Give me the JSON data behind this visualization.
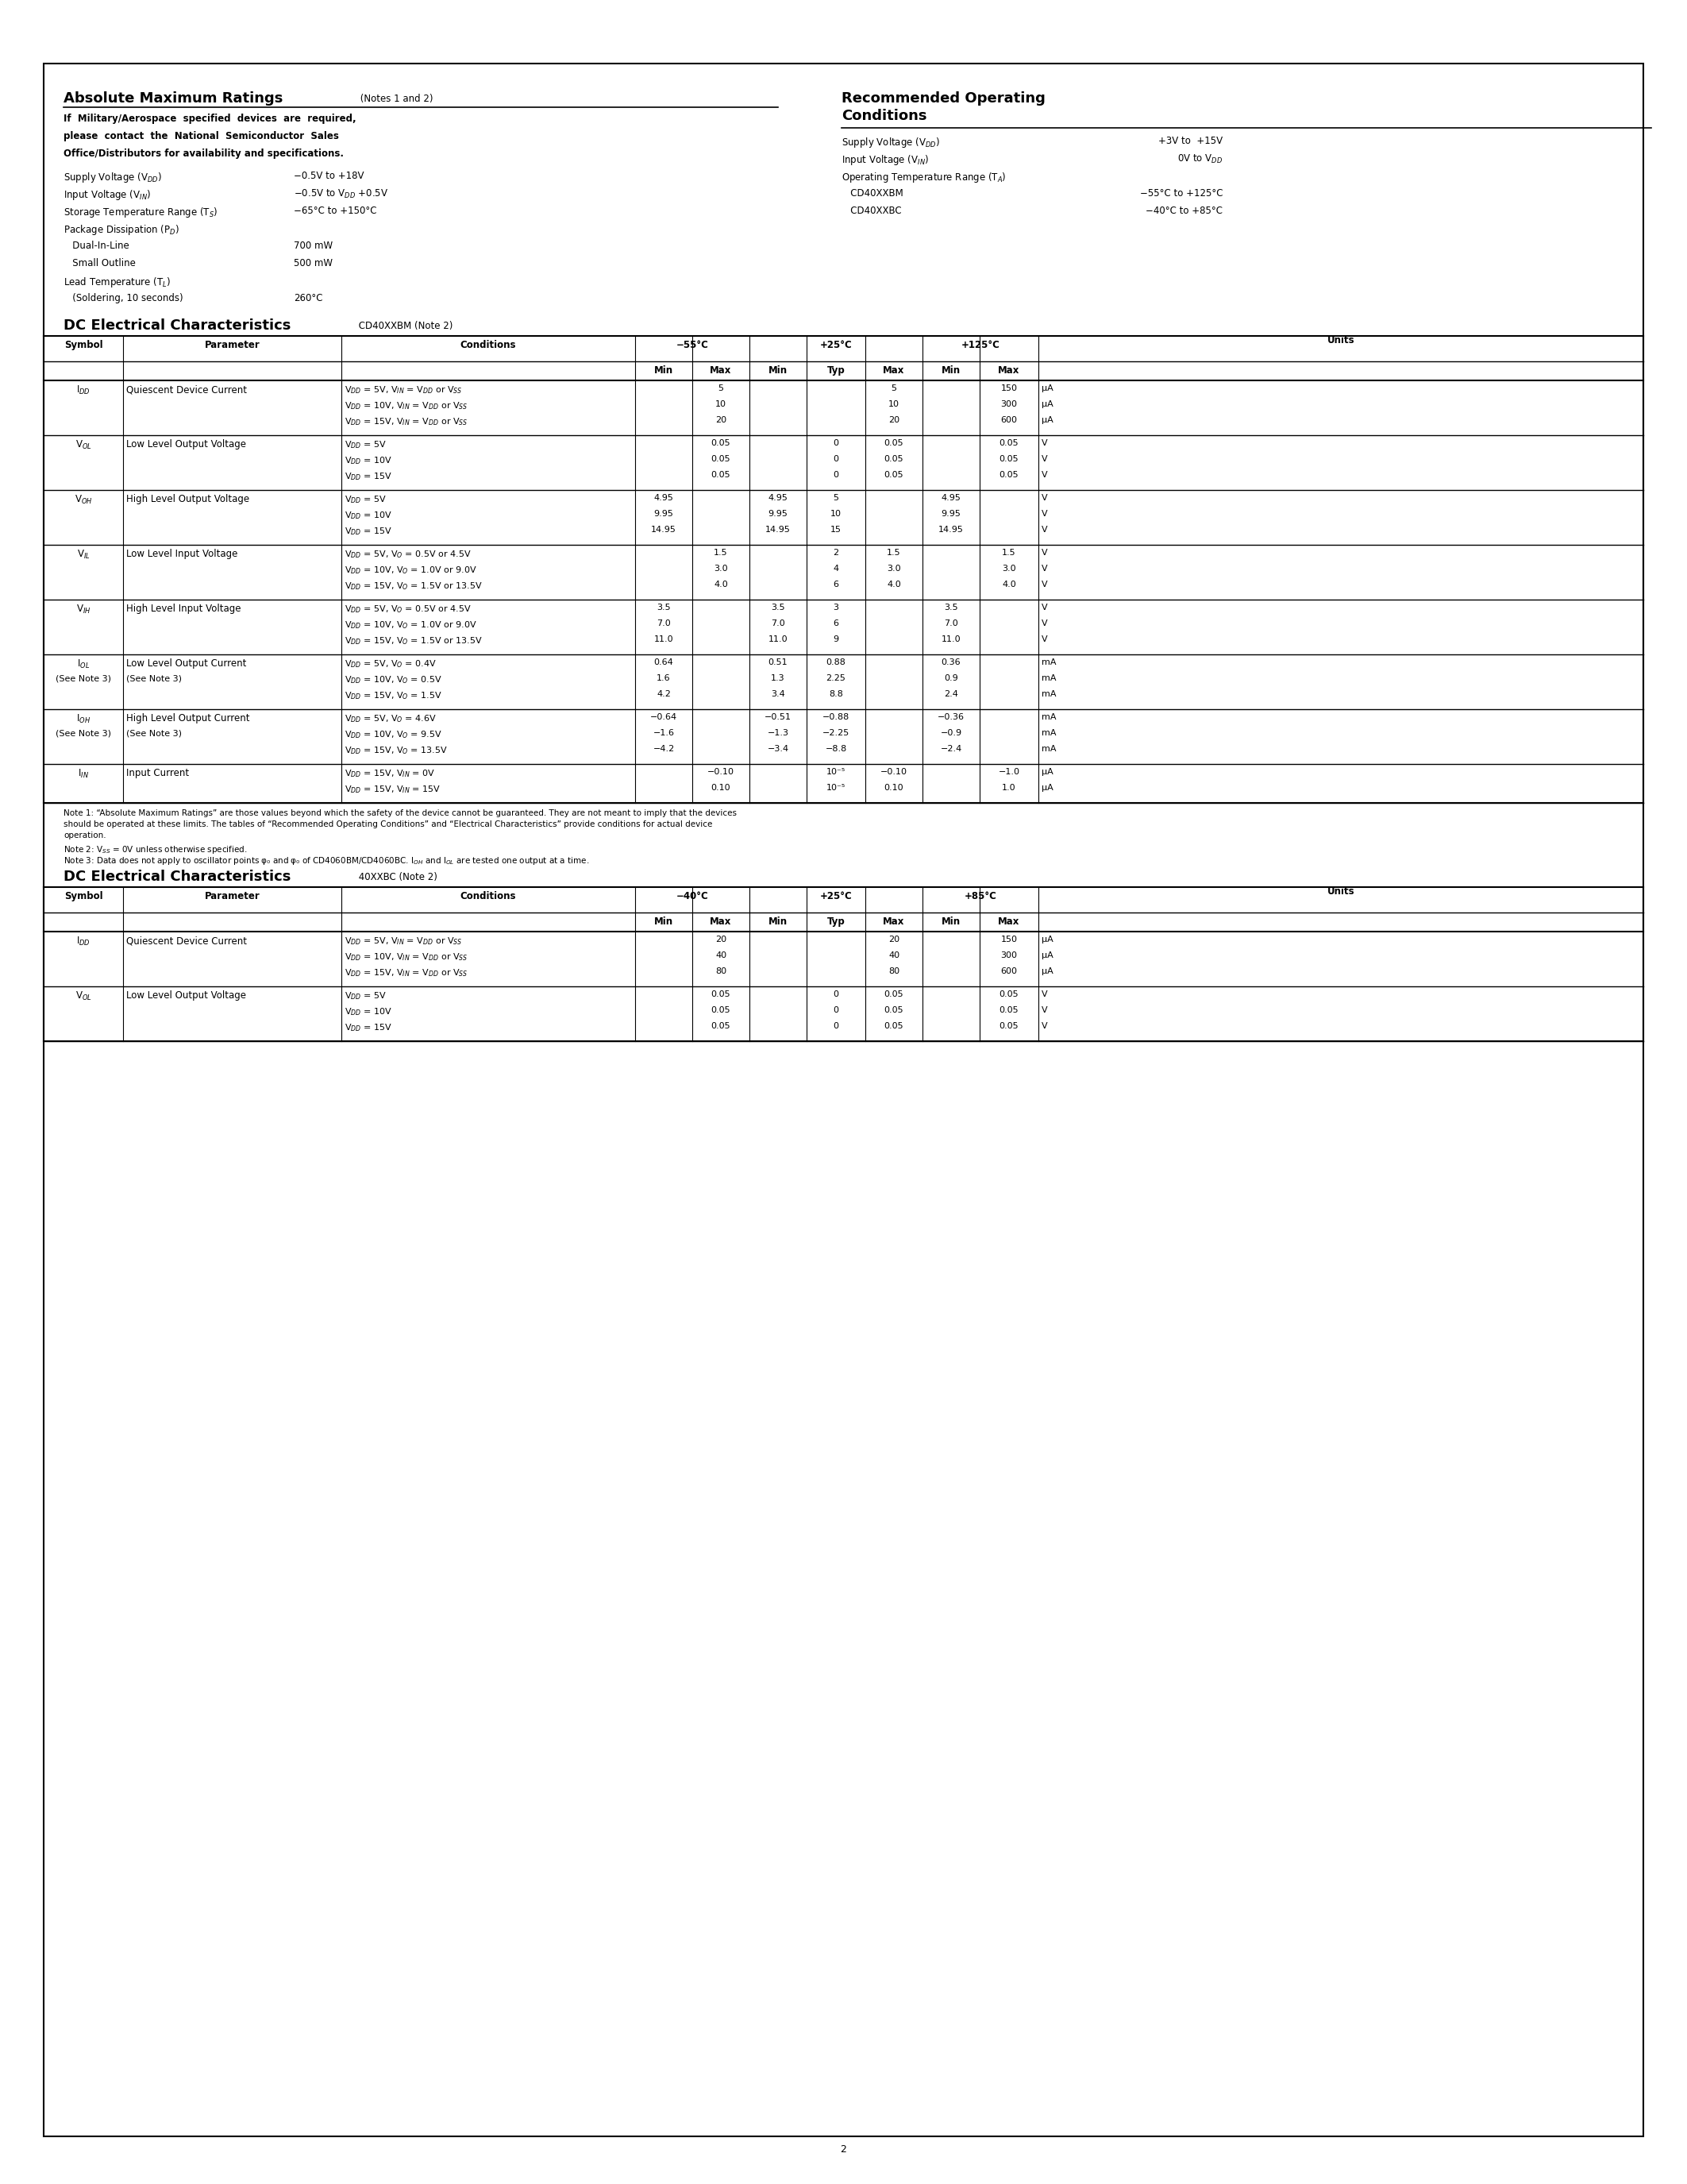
{
  "page_bg": "#ffffff",
  "border_lw": 1.5,
  "page_number": "2",
  "abs_max_title": "Absolute Maximum Ratings",
  "abs_max_notes": " (Notes 1 and 2)",
  "abs_max_military": "If  Military/Aerospace  specified  devices  are  required,\nplease  contact  the  National  Semiconductor  Sales\nOffice/Distributors for availability and specifications.",
  "rec_op_line1": "Recommended Operating",
  "rec_op_line2": "Conditions",
  "dc_title1": "DC Electrical Characteristics",
  "dc_subtitle1": " CD40XXBM (Note 2)",
  "dc_title2": "DC Electrical Characteristics",
  "dc_subtitle2": " 40XXBC (Note 2)",
  "temp_hdrs_1": [
    "−55°C",
    "+25°C",
    "+125°C"
  ],
  "temp_hdrs_2": [
    "−40°C",
    "+25°C",
    "+85°C"
  ],
  "sub_hdrs": [
    "Min",
    "Max",
    "Min",
    "Typ",
    "Max",
    "Min",
    "Max"
  ],
  "col_hdrs": [
    "Symbol",
    "Parameter",
    "Conditions",
    "Units"
  ],
  "note1": "Note 1: “Absolute Maximum Ratings” are those values beyond which the safety of the device cannot be guaranteed. They are not meant to imply that the devices",
  "note1b": "should be operated at these limits. The tables of “Recommended Operating Conditions” and “Electrical Characteristics” provide conditions for actual device",
  "note1c": "operation.",
  "note2": "Note 2: V$_{SS}$ = 0V unless otherwise specified.",
  "note3": "Note 3: Data does not apply to oscillator points φ$_0$ and $\\overline{\\varphi_0}$ of CD4060BM/CD4060BC. I$_{OH}$ and I$_{OL}$ are tested one output at a time.",
  "table1_rows": [
    {
      "symbol": "I$_{DD}$",
      "param": "Quiescent Device Current",
      "conditions": [
        "V$_{DD}$ = 5V, V$_{IN}$ = V$_{DD}$ or V$_{SS}$",
        "V$_{DD}$ = 10V, V$_{IN}$ = V$_{DD}$ or V$_{SS}$",
        "V$_{DD}$ = 15V, V$_{IN}$ = V$_{DD}$ or V$_{SS}$"
      ],
      "m55_min": [
        "",
        "",
        ""
      ],
      "m55_max": [
        "5",
        "10",
        "20"
      ],
      "p25_min": [
        "",
        "",
        ""
      ],
      "p25_typ": [
        "",
        "",
        ""
      ],
      "p25_max": [
        "5",
        "10",
        "20"
      ],
      "p125_min": [
        "",
        "",
        ""
      ],
      "p125_max": [
        "150",
        "300",
        "600"
      ],
      "units": [
        "μA",
        "μA",
        "μA"
      ]
    },
    {
      "symbol": "V$_{OL}$",
      "param": "Low Level Output Voltage",
      "conditions": [
        "V$_{DD}$ = 5V",
        "V$_{DD}$ = 10V",
        "V$_{DD}$ = 15V"
      ],
      "m55_min": [
        "",
        "",
        ""
      ],
      "m55_max": [
        "0.05",
        "0.05",
        "0.05"
      ],
      "p25_min": [
        "",
        "",
        ""
      ],
      "p25_typ": [
        "0",
        "0",
        "0"
      ],
      "p25_max": [
        "0.05",
        "0.05",
        "0.05"
      ],
      "p125_min": [
        "",
        "",
        ""
      ],
      "p125_max": [
        "0.05",
        "0.05",
        "0.05"
      ],
      "units": [
        "V",
        "V",
        "V"
      ]
    },
    {
      "symbol": "V$_{OH}$",
      "param": "High Level Output Voltage",
      "conditions": [
        "V$_{DD}$ = 5V",
        "V$_{DD}$ = 10V",
        "V$_{DD}$ = 15V"
      ],
      "m55_min": [
        "4.95",
        "9.95",
        "14.95"
      ],
      "m55_max": [
        "",
        "",
        ""
      ],
      "p25_min": [
        "4.95",
        "9.95",
        "14.95"
      ],
      "p25_typ": [
        "5",
        "10",
        "15"
      ],
      "p25_max": [
        "",
        "",
        ""
      ],
      "p125_min": [
        "4.95",
        "9.95",
        "14.95"
      ],
      "p125_max": [
        "",
        "",
        ""
      ],
      "units": [
        "V",
        "V",
        "V"
      ]
    },
    {
      "symbol": "V$_{IL}$",
      "param": "Low Level Input Voltage",
      "conditions": [
        "V$_{DD}$ = 5V, V$_O$ = 0.5V or 4.5V",
        "V$_{DD}$ = 10V, V$_O$ = 1.0V or 9.0V",
        "V$_{DD}$ = 15V, V$_O$ = 1.5V or 13.5V"
      ],
      "m55_min": [
        "",
        "",
        ""
      ],
      "m55_max": [
        "1.5",
        "3.0",
        "4.0"
      ],
      "p25_min": [
        "",
        "",
        ""
      ],
      "p25_typ": [
        "2",
        "4",
        "6"
      ],
      "p25_max": [
        "1.5",
        "3.0",
        "4.0"
      ],
      "p125_min": [
        "",
        "",
        ""
      ],
      "p125_max": [
        "1.5",
        "3.0",
        "4.0"
      ],
      "units": [
        "V",
        "V",
        "V"
      ]
    },
    {
      "symbol": "V$_{IH}$",
      "param": "High Level Input Voltage",
      "conditions": [
        "V$_{DD}$ = 5V, V$_O$ = 0.5V or 4.5V",
        "V$_{DD}$ = 10V, V$_O$ = 1.0V or 9.0V",
        "V$_{DD}$ = 15V, V$_O$ = 1.5V or 13.5V"
      ],
      "m55_min": [
        "3.5",
        "7.0",
        "11.0"
      ],
      "m55_max": [
        "",
        "",
        ""
      ],
      "p25_min": [
        "3.5",
        "7.0",
        "11.0"
      ],
      "p25_typ": [
        "3",
        "6",
        "9"
      ],
      "p25_max": [
        "",
        "",
        ""
      ],
      "p125_min": [
        "3.5",
        "7.0",
        "11.0"
      ],
      "p125_max": [
        "",
        "",
        ""
      ],
      "units": [
        "V",
        "V",
        "V"
      ]
    },
    {
      "symbol": "I$_{OL}$",
      "symbol2": "(See Note 3)",
      "param": "Low Level Output Current",
      "param2": "(See Note 3)",
      "conditions": [
        "V$_{DD}$ = 5V, V$_O$ = 0.4V",
        "V$_{DD}$ = 10V, V$_O$ = 0.5V",
        "V$_{DD}$ = 15V, V$_O$ = 1.5V"
      ],
      "m55_min": [
        "0.64",
        "1.6",
        "4.2"
      ],
      "m55_max": [
        "",
        "",
        ""
      ],
      "p25_min": [
        "0.51",
        "1.3",
        "3.4"
      ],
      "p25_typ": [
        "0.88",
        "2.25",
        "8.8"
      ],
      "p25_max": [
        "",
        "",
        ""
      ],
      "p125_min": [
        "0.36",
        "0.9",
        "2.4"
      ],
      "p125_max": [
        "",
        "",
        ""
      ],
      "units": [
        "mA",
        "mA",
        "mA"
      ]
    },
    {
      "symbol": "I$_{OH}$",
      "symbol2": "(See Note 3)",
      "param": "High Level Output Current",
      "param2": "(See Note 3)",
      "conditions": [
        "V$_{DD}$ = 5V, V$_O$ = 4.6V",
        "V$_{DD}$ = 10V, V$_O$ = 9.5V",
        "V$_{DD}$ = 15V, V$_O$ = 13.5V"
      ],
      "m55_min": [
        "−0.64",
        "−1.6",
        "−4.2"
      ],
      "m55_max": [
        "",
        "",
        ""
      ],
      "p25_min": [
        "−0.51",
        "−1.3",
        "−3.4"
      ],
      "p25_typ": [
        "−0.88",
        "−2.25",
        "−8.8"
      ],
      "p25_max": [
        "",
        "",
        ""
      ],
      "p125_min": [
        "−0.36",
        "−0.9",
        "−2.4"
      ],
      "p125_max": [
        "",
        "",
        ""
      ],
      "units": [
        "mA",
        "mA",
        "mA"
      ]
    },
    {
      "symbol": "I$_{IN}$",
      "param": "Input Current",
      "conditions": [
        "V$_{DD}$ = 15V, V$_{IN}$ = 0V",
        "V$_{DD}$ = 15V, V$_{IN}$ = 15V"
      ],
      "m55_min": [
        "",
        ""
      ],
      "m55_max": [
        "−0.10",
        "0.10"
      ],
      "p25_min": [
        "",
        ""
      ],
      "p25_typ": [
        "10⁻⁵",
        "10⁻⁵"
      ],
      "p25_max": [
        "−0.10",
        "0.10"
      ],
      "p125_min": [
        "",
        ""
      ],
      "p125_max": [
        "−1.0",
        "1.0"
      ],
      "units": [
        "μA",
        "μA"
      ]
    }
  ],
  "table2_rows": [
    {
      "symbol": "I$_{DD}$",
      "param": "Quiescent Device Current",
      "conditions": [
        "V$_{DD}$ = 5V, V$_{IN}$ = V$_{DD}$ or V$_{SS}$",
        "V$_{DD}$ = 10V, V$_{IN}$ = V$_{DD}$ or V$_{SS}$",
        "V$_{DD}$ = 15V, V$_{IN}$ = V$_{DD}$ or V$_{SS}$"
      ],
      "m40_min": [
        "",
        "",
        ""
      ],
      "m40_max": [
        "20",
        "40",
        "80"
      ],
      "p25_min": [
        "",
        "",
        ""
      ],
      "p25_typ": [
        "",
        "",
        ""
      ],
      "p25_max": [
        "20",
        "40",
        "80"
      ],
      "p85_min": [
        "",
        "",
        ""
      ],
      "p85_max": [
        "150",
        "300",
        "600"
      ],
      "units": [
        "μA",
        "μA",
        "μA"
      ]
    },
    {
      "symbol": "V$_{OL}$",
      "param": "Low Level Output Voltage",
      "conditions": [
        "V$_{DD}$ = 5V",
        "V$_{DD}$ = 10V",
        "V$_{DD}$ = 15V"
      ],
      "m40_min": [
        "",
        "",
        ""
      ],
      "m40_max": [
        "0.05",
        "0.05",
        "0.05"
      ],
      "p25_min": [
        "",
        "",
        ""
      ],
      "p25_typ": [
        "0",
        "0",
        "0"
      ],
      "p25_max": [
        "0.05",
        "0.05",
        "0.05"
      ],
      "p85_min": [
        "",
        "",
        ""
      ],
      "p85_max": [
        "0.05",
        "0.05",
        "0.05"
      ],
      "units": [
        "V",
        "V",
        "V"
      ]
    }
  ]
}
